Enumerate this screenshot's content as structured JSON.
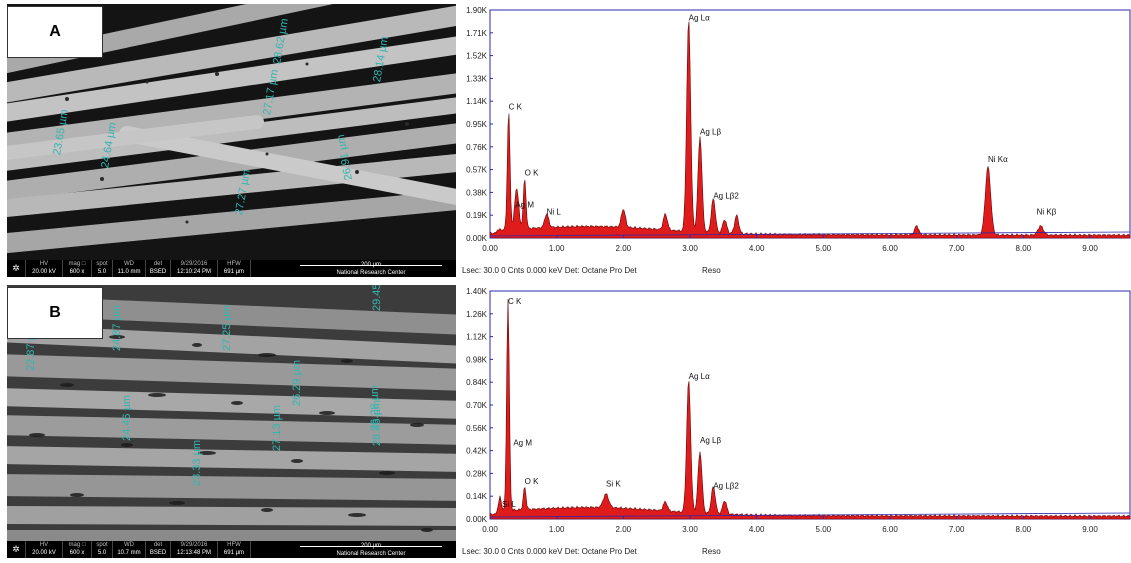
{
  "panels": [
    {
      "label": "A",
      "sem": {
        "measurements": [
          "28.62 µm",
          "28.14 µm",
          "27.17 µm",
          "23.65 µm",
          "24.64 µm",
          "27.27 µm",
          "26.91 µm"
        ],
        "databar": {
          "hv": {
            "h": "HV",
            "v": "20.00 kV"
          },
          "mag": {
            "h": "mag □",
            "v": "600 x"
          },
          "spot": {
            "h": "spot",
            "v": "5.0"
          },
          "wd": {
            "h": "WD",
            "v": "11.0 mm"
          },
          "det": {
            "h": "det",
            "v": "BSED"
          },
          "date": {
            "h": "9/29/2016",
            "v": "12:10:24 PM"
          },
          "hfw": {
            "h": "HFW",
            "v": "691 µm"
          },
          "scale": "200 µm",
          "center": "National Research Center"
        }
      },
      "eds": {
        "yticks": [
          "0.00K",
          "0.19K",
          "0.38K",
          "0.57K",
          "0.76K",
          "0.95K",
          "1.14K",
          "1.33K",
          "1.52K",
          "1.71K",
          "1.90K"
        ],
        "xticks": [
          "0.00",
          "1.00",
          "2.00",
          "3.00",
          "4.00",
          "5.00",
          "6.00",
          "7.00",
          "8.00",
          "9.00"
        ],
        "peak_labels": [
          "Ag Lα",
          "Ag Lβ",
          "C K",
          "O K",
          "Ag M",
          "Ni L",
          "Ag Lβ2",
          "Ni Kα",
          "Ni Kβ"
        ],
        "footer": "Lsec: 30.0 0 Cnts  0.000 keV Det: Octane Pro Det",
        "reso": "Reso"
      }
    },
    {
      "label": "B",
      "sem": {
        "measurements": [
          "22.87 µm",
          "24.87 µm",
          "27.25 µm",
          "29.45 µm",
          "24.46 µm",
          "26.29 µm",
          "23.33 µm",
          "28.36 µm",
          "27.13 µm",
          "26.28 µm"
        ],
        "databar": {
          "hv": {
            "h": "HV",
            "v": "20.00 kV"
          },
          "mag": {
            "h": "mag □",
            "v": "600 x"
          },
          "spot": {
            "h": "spot",
            "v": "5.0"
          },
          "wd": {
            "h": "WD",
            "v": "10.7 mm"
          },
          "det": {
            "h": "det",
            "v": "BSED"
          },
          "date": {
            "h": "9/29/2016",
            "v": "12:13:48 PM"
          },
          "hfw": {
            "h": "HFW",
            "v": "691 µm"
          },
          "scale": "200 µm",
          "center": "National Research Center"
        }
      },
      "eds": {
        "yticks": [
          "0.00K",
          "0.14K",
          "0.28K",
          "0.42K",
          "0.56K",
          "0.70K",
          "0.84K",
          "0.98K",
          "1.12K",
          "1.26K",
          "1.40K"
        ],
        "xticks": [
          "0.00",
          "1.00",
          "2.00",
          "3.00",
          "4.00",
          "5.00",
          "6.00",
          "7.00",
          "8.00",
          "9.00"
        ],
        "peak_labels": [
          "C K",
          "Ag Lα",
          "Ag M",
          "Ag Lβ",
          "O K",
          "Si K",
          "Si L",
          "Ag Lβ2"
        ],
        "footer": "Lsec: 30.0 0 Cnts  0.000 keV Det: Octane Pro Det",
        "reso": "Reso"
      }
    }
  ],
  "colors": {
    "spectrum": "#e01b1b",
    "axis": "#2a2ab0",
    "measure": "#35b5b0"
  }
}
